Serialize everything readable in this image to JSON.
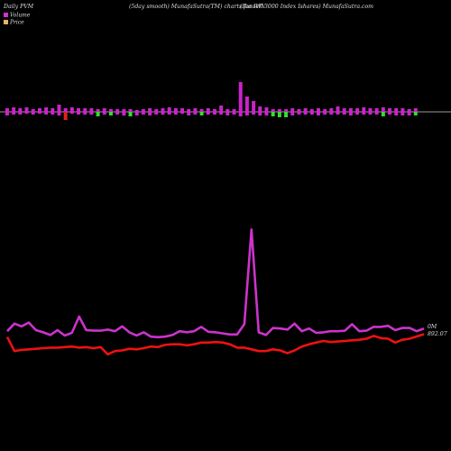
{
  "header": {
    "left": "Daily PVM",
    "center": "(5day smooth) MunafaSutra(TM) charts for IWV",
    "right": "(Russell 3000  Index Ishares) MunafaSutra.com"
  },
  "legend": [
    {
      "label": "Volume",
      "color": "#cc33cc"
    },
    {
      "label": "Price",
      "color": "#e8b070"
    }
  ],
  "colors": {
    "background": "#000000",
    "volume_up": "#cc22cc",
    "volume_down": "#33dd33",
    "volume_neutral": "#dd2222",
    "volume_line": "#cc33cc",
    "price_line": "#ee1111",
    "baseline": "#cccccc",
    "label_text": "#dddddd"
  },
  "chart_data": [
    {
      "type": "bar",
      "name": "volume-pvm-bars",
      "description_units": "relative bar height (above baseline positive, below negative)",
      "values": [
        {
          "up": 4,
          "down": -4,
          "color": "volume_up"
        },
        {
          "up": 5,
          "down": -3,
          "color": "volume_up"
        },
        {
          "up": 4,
          "down": -3,
          "color": "volume_up"
        },
        {
          "up": 5,
          "down": -2,
          "color": "volume_up"
        },
        {
          "up": 3,
          "down": -3,
          "color": "volume_up"
        },
        {
          "up": 4,
          "down": -2,
          "color": "volume_up"
        },
        {
          "up": 5,
          "down": -3,
          "color": "volume_up"
        },
        {
          "up": 4,
          "down": -3,
          "color": "volume_up"
        },
        {
          "up": 8,
          "down": -4,
          "color": "volume_up"
        },
        {
          "up": 4,
          "down": -9,
          "color": "volume_neutral"
        },
        {
          "up": 5,
          "down": -2,
          "color": "volume_up"
        },
        {
          "up": 4,
          "down": -3,
          "color": "volume_up"
        },
        {
          "up": 4,
          "down": -3,
          "color": "volume_up"
        },
        {
          "up": 4,
          "down": -3,
          "color": "volume_up"
        },
        {
          "up": 3,
          "down": -5,
          "color": "volume_down"
        },
        {
          "up": 4,
          "down": -3,
          "color": "volume_up"
        },
        {
          "up": 3,
          "down": -4,
          "color": "volume_down"
        },
        {
          "up": 3,
          "down": -3,
          "color": "volume_up"
        },
        {
          "up": 3,
          "down": -4,
          "color": "volume_up"
        },
        {
          "up": 3,
          "down": -5,
          "color": "volume_down"
        },
        {
          "up": 2,
          "down": -4,
          "color": "volume_up"
        },
        {
          "up": 3,
          "down": -3,
          "color": "volume_up"
        },
        {
          "up": 4,
          "down": -4,
          "color": "volume_up"
        },
        {
          "up": 3,
          "down": -3,
          "color": "volume_up"
        },
        {
          "up": 4,
          "down": -3,
          "color": "volume_up"
        },
        {
          "up": 5,
          "down": -3,
          "color": "volume_up"
        },
        {
          "up": 4,
          "down": -3,
          "color": "volume_up"
        },
        {
          "up": 4,
          "down": -2,
          "color": "volume_up"
        },
        {
          "up": 3,
          "down": -4,
          "color": "volume_up"
        },
        {
          "up": 4,
          "down": -3,
          "color": "volume_up"
        },
        {
          "up": 3,
          "down": -4,
          "color": "volume_down"
        },
        {
          "up": 4,
          "down": -3,
          "color": "volume_up"
        },
        {
          "up": 3,
          "down": -3,
          "color": "volume_up"
        },
        {
          "up": 7,
          "down": -3,
          "color": "volume_up"
        },
        {
          "up": 3,
          "down": -4,
          "color": "volume_up"
        },
        {
          "up": 3,
          "down": -3,
          "color": "volume_up"
        },
        {
          "up": 33,
          "down": -5,
          "color": "volume_up"
        },
        {
          "up": 17,
          "down": -4,
          "color": "volume_up"
        },
        {
          "up": 12,
          "down": -3,
          "color": "volume_up"
        },
        {
          "up": 6,
          "down": -4,
          "color": "volume_up"
        },
        {
          "up": 5,
          "down": -4,
          "color": "volume_up"
        },
        {
          "up": 3,
          "down": -5,
          "color": "volume_down"
        },
        {
          "up": 3,
          "down": -6,
          "color": "volume_down"
        },
        {
          "up": 3,
          "down": -6,
          "color": "volume_down"
        },
        {
          "up": 4,
          "down": -4,
          "color": "volume_up"
        },
        {
          "up": 3,
          "down": -3,
          "color": "volume_up"
        },
        {
          "up": 4,
          "down": -3,
          "color": "volume_up"
        },
        {
          "up": 3,
          "down": -3,
          "color": "volume_up"
        },
        {
          "up": 4,
          "down": -4,
          "color": "volume_up"
        },
        {
          "up": 3,
          "down": -3,
          "color": "volume_up"
        },
        {
          "up": 4,
          "down": -3,
          "color": "volume_up"
        },
        {
          "up": 6,
          "down": -3,
          "color": "volume_up"
        },
        {
          "up": 4,
          "down": -3,
          "color": "volume_up"
        },
        {
          "up": 4,
          "down": -4,
          "color": "volume_up"
        },
        {
          "up": 4,
          "down": -3,
          "color": "volume_up"
        },
        {
          "up": 5,
          "down": -3,
          "color": "volume_up"
        },
        {
          "up": 4,
          "down": -3,
          "color": "volume_up"
        },
        {
          "up": 4,
          "down": -3,
          "color": "volume_up"
        },
        {
          "up": 5,
          "down": -5,
          "color": "volume_down"
        },
        {
          "up": 4,
          "down": -3,
          "color": "volume_up"
        },
        {
          "up": 4,
          "down": -4,
          "color": "volume_up"
        },
        {
          "up": 4,
          "down": -4,
          "color": "volume_up"
        },
        {
          "up": 3,
          "down": -4,
          "color": "volume_up"
        },
        {
          "up": 4,
          "down": -4,
          "color": "volume_down"
        }
      ]
    },
    {
      "type": "line",
      "name": "volume-line",
      "label": "0M",
      "values": [
        38,
        52,
        47,
        54,
        40,
        36,
        31,
        40,
        30,
        35,
        65,
        40,
        39,
        39,
        41,
        38,
        47,
        36,
        30,
        36,
        28,
        27,
        28,
        31,
        38,
        36,
        38,
        46,
        37,
        36,
        34,
        32,
        32,
        51,
        226,
        36,
        31,
        44,
        43,
        41,
        52,
        38,
        43,
        35,
        36,
        38,
        38,
        39,
        51,
        38,
        39,
        46,
        46,
        48,
        40,
        44,
        44,
        38,
        43
      ]
    },
    {
      "type": "line",
      "name": "price-line",
      "label": "892.07",
      "values": [
        851,
        826,
        828,
        829,
        830,
        831,
        832,
        832,
        833,
        834,
        832,
        833,
        831,
        833,
        820,
        826,
        827,
        830,
        829,
        831,
        834,
        833,
        837,
        838,
        838,
        836,
        838,
        841,
        841,
        842,
        841,
        838,
        832,
        832,
        829,
        826,
        826,
        829,
        827,
        822,
        827,
        834,
        838,
        841,
        844,
        842,
        843,
        844,
        845,
        846,
        848,
        853,
        849,
        848,
        841,
        846,
        848,
        852,
        856
      ]
    }
  ]
}
